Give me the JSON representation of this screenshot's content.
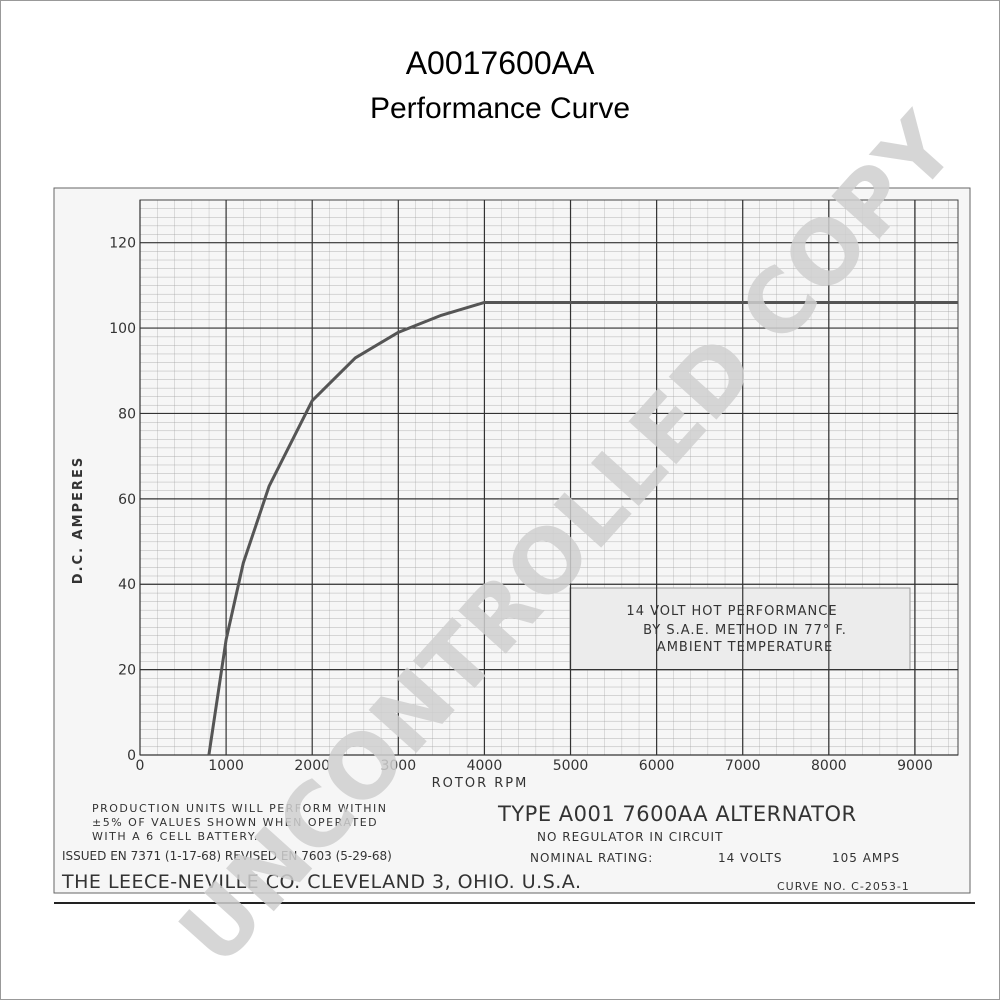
{
  "chart_data": {
    "type": "line",
    "title": "A0017600AA",
    "subtitle": "Performance Curve",
    "x_label": "ROTOR RPM",
    "y_label": "D.C. AMPERES",
    "x": [
      800,
      1000,
      1200,
      1500,
      2000,
      2500,
      3000,
      3500,
      4000,
      4500,
      9500
    ],
    "values": [
      0,
      27,
      45,
      63,
      83,
      93,
      99,
      103,
      106,
      106,
      106
    ],
    "color": "#555555",
    "xlim": [
      0,
      9500
    ],
    "ylim": [
      0,
      130
    ],
    "xticks": [
      0,
      1000,
      2000,
      3000,
      4000,
      5000,
      6000,
      7000,
      8000,
      9000
    ],
    "yticks": [
      0,
      20,
      40,
      60,
      80,
      100,
      120
    ],
    "grid": true,
    "annotation": [
      "14 VOLT HOT PERFORMANCE",
      "BY S.A.E. METHOD IN 77° F.",
      "AMBIENT TEMPERATURE"
    ],
    "note": [
      "PRODUCTION UNITS WILL PERFORM WITHIN",
      "±5% OF VALUES SHOWN WHEN OPERATED",
      "WITH A 6 CELL BATTERY."
    ],
    "issued": "ISSUED EN 7371 (1-17-68) REVISED EN 7603 (5-29-68)",
    "company": "THE LEECE-NEVILLE CO. CLEVELAND 3, OHIO. U.S.A.",
    "type_label": "TYPE A001 7600AA ALTERNATOR",
    "regulator": "NO REGULATOR IN CIRCUIT",
    "rating_label": "NOMINAL RATING:",
    "volts": "14 VOLTS",
    "amps": "105 AMPS",
    "curve_no": "CURVE NO. C-2053-1",
    "watermark": "UNCONTROLLED COPY"
  }
}
